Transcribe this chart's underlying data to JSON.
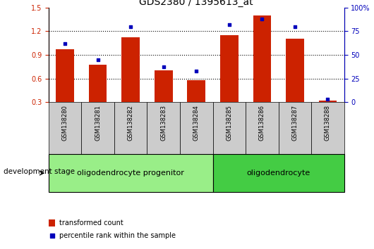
{
  "title": "GDS2380 / 1395613_at",
  "samples": [
    "GSM138280",
    "GSM138281",
    "GSM138282",
    "GSM138283",
    "GSM138284",
    "GSM138285",
    "GSM138286",
    "GSM138287",
    "GSM138288"
  ],
  "transformed_count": [
    0.97,
    0.77,
    1.12,
    0.7,
    0.58,
    1.15,
    1.4,
    1.1,
    0.32
  ],
  "percentile_rank": [
    62,
    45,
    80,
    37,
    33,
    82,
    88,
    80,
    3
  ],
  "ylim_left": [
    0.3,
    1.5
  ],
  "ylim_right": [
    0,
    100
  ],
  "yticks_left": [
    0.3,
    0.6,
    0.9,
    1.2,
    1.5
  ],
  "yticks_right": [
    0,
    25,
    50,
    75,
    100
  ],
  "ytick_right_labels": [
    "0",
    "25",
    "50",
    "75",
    "100%"
  ],
  "groups": [
    {
      "label": "oligodendrocyte progenitor",
      "start": 0,
      "end": 4
    },
    {
      "label": "oligodendrocyte",
      "start": 5,
      "end": 8
    }
  ],
  "bar_color": "#CC2200",
  "dot_color": "#0000BB",
  "bar_width": 0.55,
  "tick_label_area_color": "#CCCCCC",
  "group_color_progenitor": "#99EE88",
  "group_color_oligo": "#44CC44",
  "legend_bar_label": "transformed count",
  "legend_dot_label": "percentile rank within the sample",
  "dev_stage_label": "development stage",
  "title_fontsize": 10,
  "axis_left_color": "#CC2200",
  "axis_right_color": "#0000BB",
  "tick_fontsize": 7,
  "sample_fontsize": 6,
  "group_fontsize": 8,
  "legend_fontsize": 7
}
